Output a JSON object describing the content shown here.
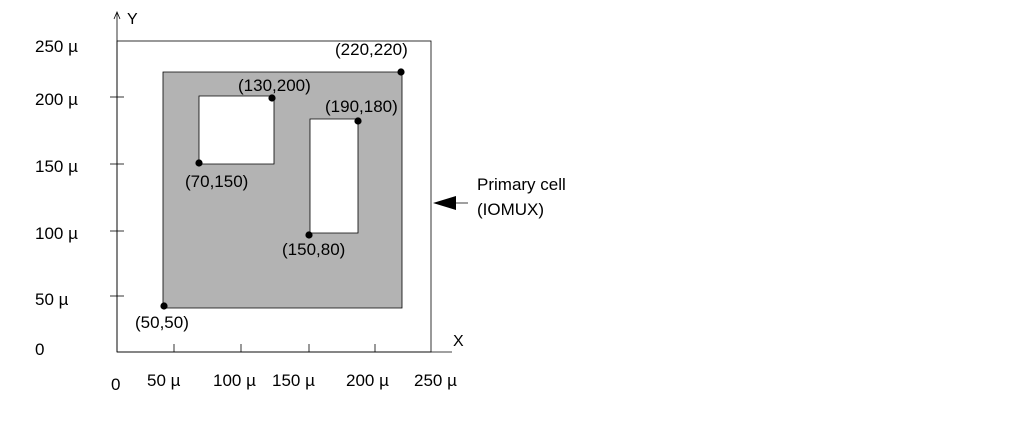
{
  "diagram": {
    "axes": {
      "x_name": "X",
      "y_name": "Y",
      "x_ticks": [
        {
          "value": 0,
          "label": "0"
        },
        {
          "value": 50,
          "label": "50 µ"
        },
        {
          "value": 100,
          "label": "100 µ"
        },
        {
          "value": 150,
          "label": "150 µ"
        },
        {
          "value": 200,
          "label": "200 µ"
        },
        {
          "value": 250,
          "label": "250 µ"
        }
      ],
      "y_ticks": [
        {
          "value": 0,
          "label": "0"
        },
        {
          "value": 50,
          "label": "50 µ"
        },
        {
          "value": 100,
          "label": "100 µ"
        },
        {
          "value": 150,
          "label": "150 µ"
        },
        {
          "value": 200,
          "label": "200 µ"
        },
        {
          "value": 250,
          "label": "250 µ"
        }
      ],
      "range": [
        0,
        250
      ]
    },
    "primary_cell": {
      "extent": [
        0,
        0,
        250,
        250
      ],
      "label_line1": "Primary cell",
      "label_line2": "(IOMUX)"
    },
    "shaded_region": {
      "corner_min": [
        50,
        50
      ],
      "corner_max": [
        220,
        220
      ],
      "fill_color": "#b3b3b3"
    },
    "cutouts": [
      {
        "corner_min": [
          70,
          150
        ],
        "corner_max": [
          130,
          200
        ]
      },
      {
        "corner_min": [
          150,
          80
        ],
        "corner_max": [
          190,
          180
        ]
      }
    ],
    "points": [
      {
        "id": "p-50-50",
        "label": "(50,50)"
      },
      {
        "id": "p-220-220",
        "label": "(220,220)"
      },
      {
        "id": "p-70-150",
        "label": "(70,150)"
      },
      {
        "id": "p-130-200",
        "label": "(130,200)"
      },
      {
        "id": "p-150-80",
        "label": "(150,80)"
      },
      {
        "id": "p-190-180",
        "label": "(190,180)"
      }
    ]
  }
}
